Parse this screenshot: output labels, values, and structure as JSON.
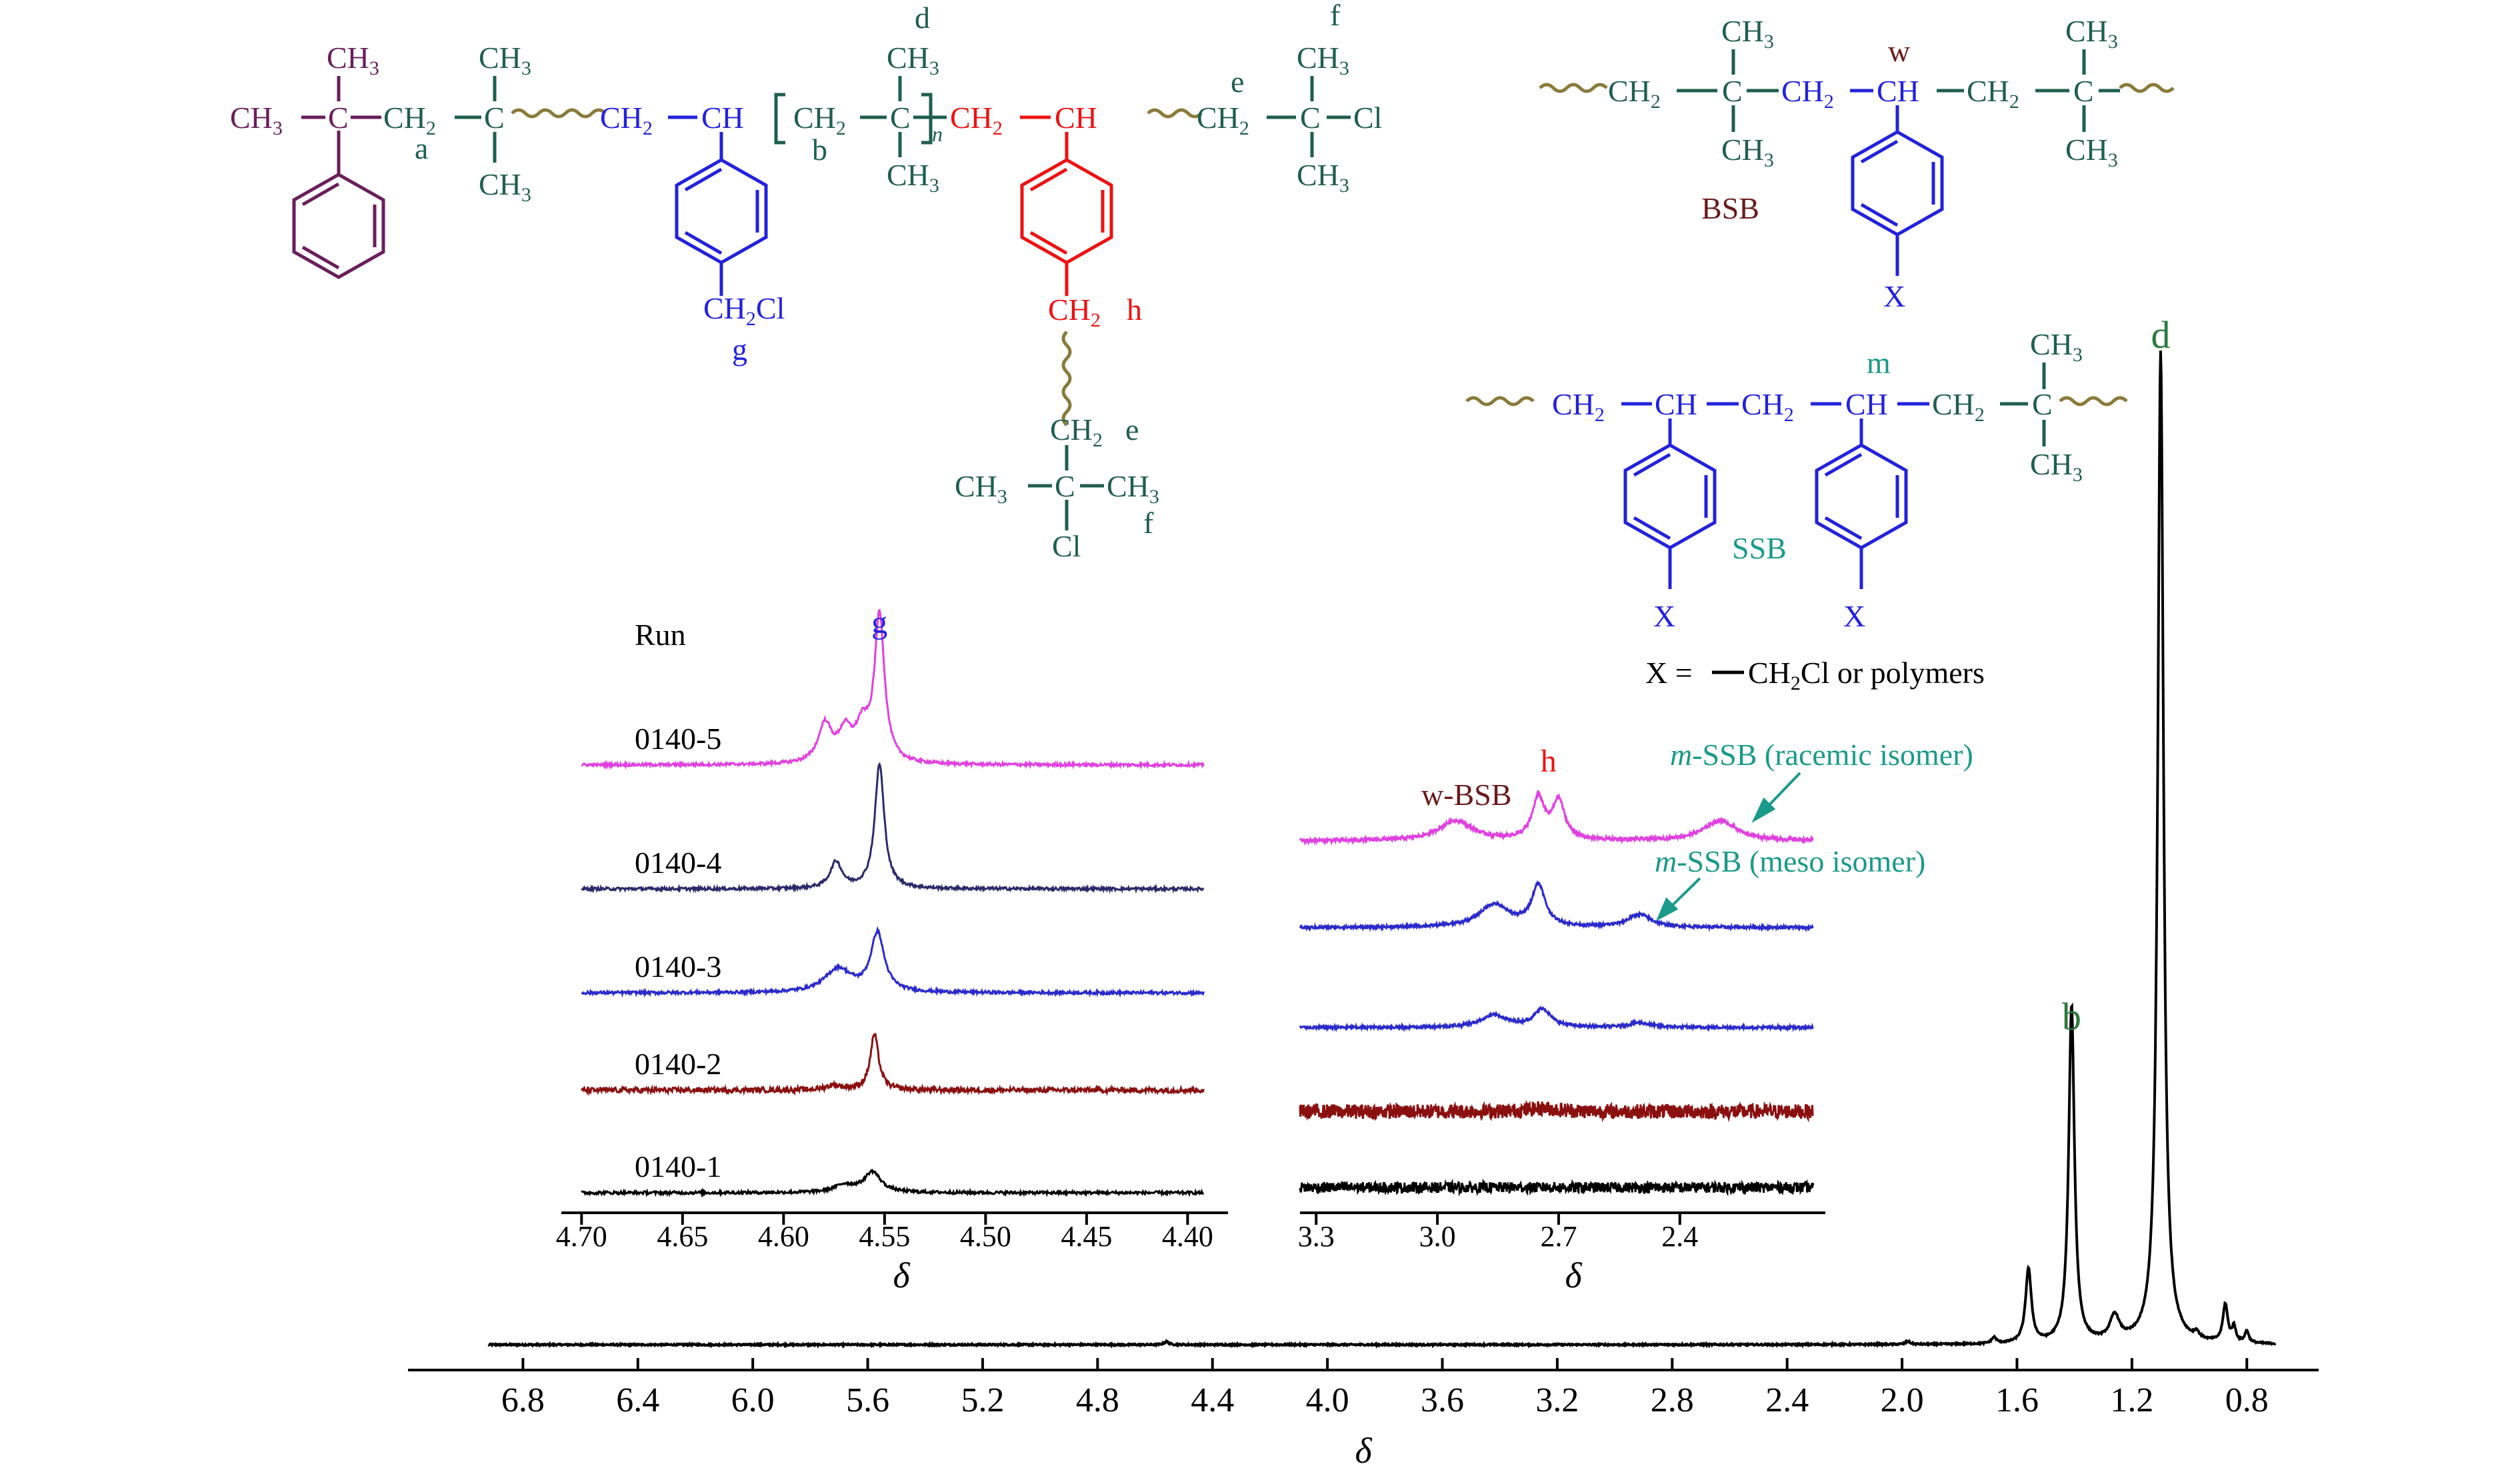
{
  "colors": {
    "teal_green": "#1f5f4f",
    "purple": "#6a1e5c",
    "blue": "#2222dd",
    "red": "#ee1111",
    "olive": "#8a7a3a",
    "maroon": "#6a1a1a",
    "teal": "#1a9a8a",
    "green": "#2a7a3a",
    "magenta": "#e040e0",
    "navy": "#2a2a6a",
    "run3_blue": "#2a2acc",
    "dark_red": "#8a1010",
    "black": "#000000"
  },
  "chart_data": [
    {
      "type": "line",
      "id": "main-spectrum",
      "title": "",
      "xlabel": "δ",
      "ylabel": "",
      "x_reversed": true,
      "xlim": [
        7.2,
        0.55
      ],
      "x_ticks": [
        "6.8",
        "6.4",
        "6.0",
        "5.6",
        "5.2",
        "4.8",
        "4.4",
        "4.0",
        "3.6",
        "3.2",
        "2.8",
        "2.4",
        "2.0",
        "1.6",
        "1.2",
        "0.8"
      ],
      "grid": false,
      "series": [
        {
          "baseline": 0,
          "peaks": [
            {
              "x": 4.56,
              "height": 0.003,
              "width": 0.01
            },
            {
              "x": 1.98,
              "height": 0.003,
              "width": 0.01
            },
            {
              "x": 1.68,
              "height": 0.006,
              "width": 0.01
            },
            {
              "x": 1.56,
              "height": 0.075,
              "width": 0.012
            },
            {
              "x": 1.41,
              "height": 0.34,
              "width": 0.012
            },
            {
              "x": 1.26,
              "height": 0.025,
              "width": 0.02
            },
            {
              "x": 1.1,
              "height": 1.0,
              "width": 0.012
            },
            {
              "x": 0.975,
              "height": 0.006,
              "width": 0.01
            },
            {
              "x": 0.875,
              "height": 0.038,
              "width": 0.01
            },
            {
              "x": 0.845,
              "height": 0.015,
              "width": 0.008
            },
            {
              "x": 0.8,
              "height": 0.012,
              "width": 0.008
            }
          ]
        }
      ],
      "annotations": [
        {
          "text": "b",
          "x": 1.41,
          "color": "green"
        },
        {
          "text": "d",
          "x": 1.1,
          "color": "green"
        }
      ]
    },
    {
      "type": "line",
      "id": "inset-left",
      "xlabel": "δ",
      "x_reversed": true,
      "xlim": [
        4.71,
        4.38
      ],
      "x_ticks": [
        "4.70",
        "4.65",
        "4.60",
        "4.55",
        "4.50",
        "4.45",
        "4.40"
      ],
      "grid": false,
      "header": "Run",
      "series": [
        {
          "name": "0140-5",
          "color": "magenta",
          "peaks": [
            {
              "x": 4.5525,
              "height": 1.0,
              "width": 0.003
            },
            {
              "x": 4.5795,
              "height": 0.26,
              "width": 0.004
            },
            {
              "x": 4.5695,
              "height": 0.2,
              "width": 0.004
            },
            {
              "x": 4.561,
              "height": 0.22,
              "width": 0.004
            }
          ]
        },
        {
          "name": "0140-4",
          "color": "navy",
          "peaks": [
            {
              "x": 4.5525,
              "height": 0.85,
              "width": 0.0028
            },
            {
              "x": 4.574,
              "height": 0.18,
              "width": 0.0035
            }
          ]
        },
        {
          "name": "0140-3",
          "color": "run3_blue",
          "peaks": [
            {
              "x": 4.5535,
              "height": 0.4,
              "width": 0.004
            },
            {
              "x": 4.573,
              "height": 0.16,
              "width": 0.008
            }
          ]
        },
        {
          "name": "0140-2",
          "color": "dark_red",
          "peaks": [
            {
              "x": 4.555,
              "height": 0.38,
              "width": 0.0025
            },
            {
              "x": 4.575,
              "height": 0.03,
              "width": 0.005
            }
          ]
        },
        {
          "name": "0140-1",
          "color": "black",
          "peaks": [
            {
              "x": 4.556,
              "height": 0.14,
              "width": 0.005
            },
            {
              "x": 4.57,
              "height": 0.05,
              "width": 0.006
            }
          ]
        }
      ],
      "annotations": [
        {
          "text": "g",
          "x": 4.5525,
          "color": "blue"
        }
      ]
    },
    {
      "type": "line",
      "id": "inset-right",
      "xlabel": "δ",
      "x_reversed": true,
      "xlim": [
        3.34,
        2.04
      ],
      "x_ticks": [
        "3.3",
        "3.0",
        "2.7",
        "2.4"
      ],
      "grid": false,
      "series": [
        {
          "color": "magenta",
          "peaks": [
            {
              "x": 2.955,
              "height": 0.3,
              "width": 0.05
            },
            {
              "x": 2.75,
              "height": 0.62,
              "width": 0.018
            },
            {
              "x": 2.7,
              "height": 0.58,
              "width": 0.018
            },
            {
              "x": 2.3,
              "height": 0.3,
              "width": 0.05
            }
          ]
        },
        {
          "color": "run3_blue",
          "peaks": [
            {
              "x": 2.86,
              "height": 0.34,
              "width": 0.045
            },
            {
              "x": 2.75,
              "height": 0.62,
              "width": 0.02
            },
            {
              "x": 2.5,
              "height": 0.19,
              "width": 0.035
            }
          ]
        },
        {
          "color": "run3_blue",
          "peaks": [
            {
              "x": 2.86,
              "height": 0.18,
              "width": 0.04
            },
            {
              "x": 2.74,
              "height": 0.27,
              "width": 0.025
            },
            {
              "x": 2.5,
              "height": 0.07,
              "width": 0.03
            }
          ]
        },
        {
          "color": "dark_red",
          "peaks": [
            {
              "x": 2.74,
              "height": 0.05,
              "width": 0.04
            }
          ]
        },
        {
          "color": "black",
          "peaks": []
        }
      ],
      "annotations": [
        {
          "text": "w-BSB",
          "color": "maroon"
        },
        {
          "text": "h",
          "color": "red"
        },
        {
          "text": "-SSB (racemic isomer)",
          "prefix": "m",
          "color": "teal"
        },
        {
          "text": "-SSB (meso isomer)",
          "prefix": "m",
          "color": "teal"
        }
      ]
    }
  ],
  "structures": {
    "labels": {
      "ch3": "CH",
      "ch2": "CH",
      "ch": "CH",
      "c": "C",
      "cl": "Cl",
      "sub3": "3",
      "sub2": "2",
      "a": "a",
      "b": "b",
      "d": "d",
      "e": "e",
      "f": "f",
      "g": "g",
      "h": "h",
      "n": "n",
      "w": "w",
      "m": "m",
      "x": "X",
      "bsb": "BSB",
      "ssb": "SSB",
      "ch2cl": "CH",
      "ch2cl_tail": "Cl",
      "legend_prefix": "X =",
      "legend_mid": "CH",
      "legend_tail": "Cl or polymers"
    }
  }
}
